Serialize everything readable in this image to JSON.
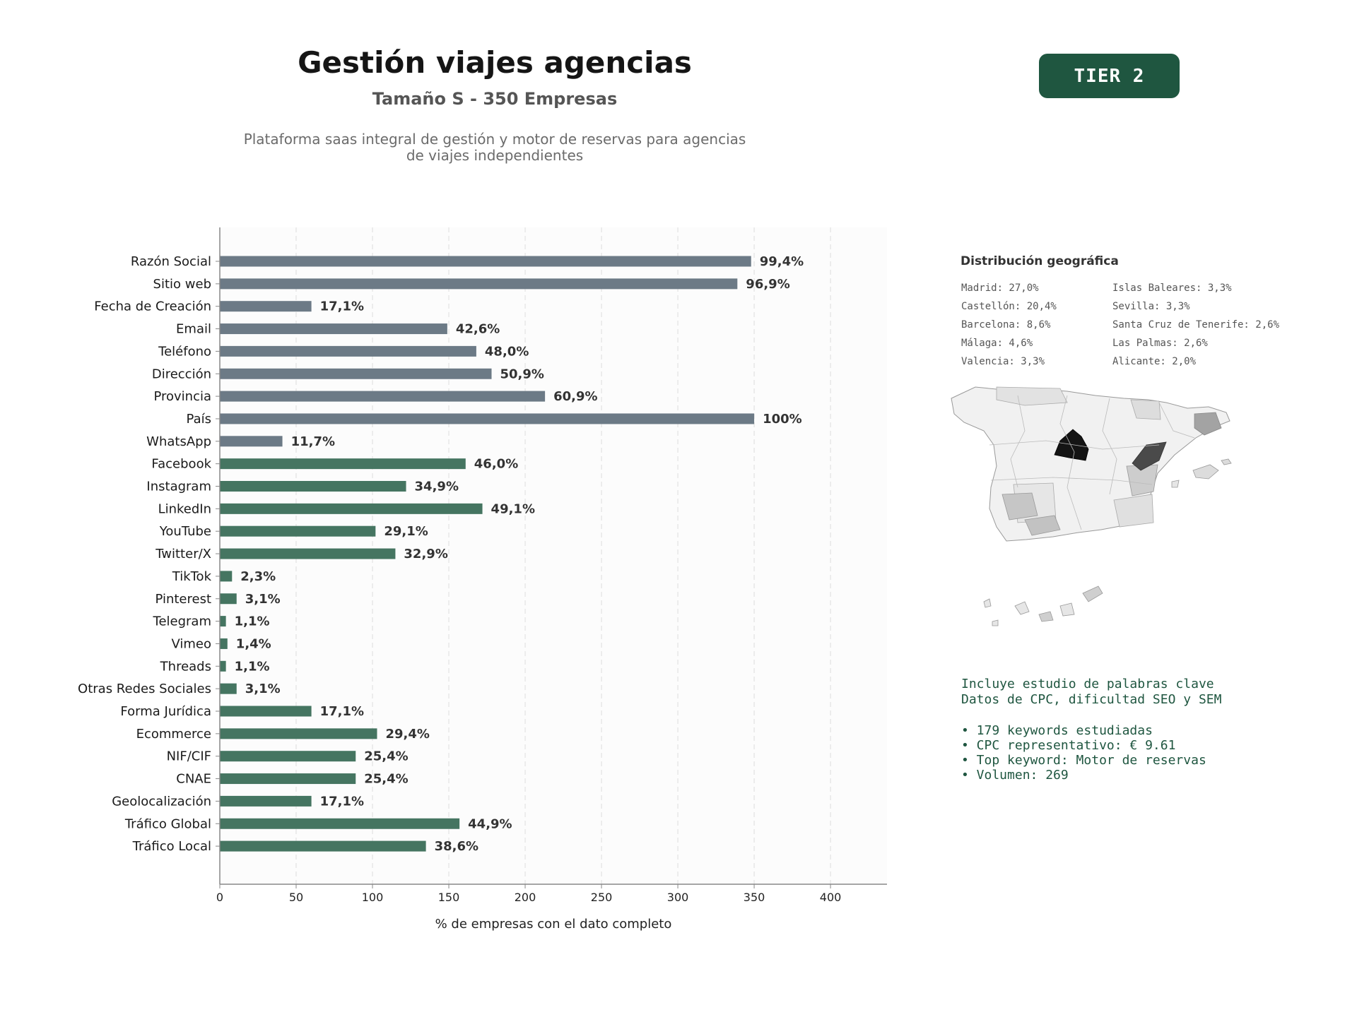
{
  "header": {
    "title": "Gestión viajes agencias",
    "subtitle": "Tamaño S - 350 Empresas",
    "description_line1": "Plataforma saas integral de gestión y motor de reservas para agencias",
    "description_line2": "de viajes independientes",
    "tier_badge": "TIER 2"
  },
  "colors": {
    "bar_gray": "#6c7a86",
    "bar_green": "#457561",
    "accent": "#1f5640"
  },
  "chart_data": {
    "type": "bar",
    "orientation": "horizontal",
    "xlabel": "% de empresas con el dato completo",
    "xlim": [
      0,
      437
    ],
    "xticks": [
      0,
      50,
      100,
      150,
      200,
      250,
      300,
      350,
      400
    ],
    "grid": "vertical dashed",
    "categories": [
      "Razón Social",
      "Sitio web",
      "Fecha de Creación",
      "Email",
      "Teléfono",
      "Dirección",
      "Provincia",
      "País",
      "WhatsApp",
      "Facebook",
      "Instagram",
      "LinkedIn",
      "YouTube",
      "Twitter/X",
      "TikTok",
      "Pinterest",
      "Telegram",
      "Vimeo",
      "Threads",
      "Otras Redes Sociales",
      "Forma Jurídica",
      "Ecommerce",
      "NIF/CIF",
      "CNAE",
      "Geolocalización",
      "Tráfico Global",
      "Tráfico Local"
    ],
    "values": [
      348,
      339,
      60,
      149,
      168,
      178,
      213,
      350,
      41,
      161,
      122,
      172,
      102,
      115,
      8,
      11,
      4,
      5,
      4,
      11,
      60,
      103,
      89,
      89,
      60,
      157,
      135
    ],
    "data_labels": [
      "99,4%",
      "96,9%",
      "17,1%",
      "42,6%",
      "48,0%",
      "50,9%",
      "60,9%",
      "100%",
      "11,7%",
      "46,0%",
      "34,9%",
      "49,1%",
      "29,1%",
      "32,9%",
      "2,3%",
      "3,1%",
      "1,1%",
      "1,4%",
      "1,1%",
      "3,1%",
      "17,1%",
      "29,4%",
      "25,4%",
      "25,4%",
      "17,1%",
      "44,9%",
      "38,6%"
    ],
    "bar_groups": [
      "gray",
      "gray",
      "gray",
      "gray",
      "gray",
      "gray",
      "gray",
      "gray",
      "gray",
      "green",
      "green",
      "green",
      "green",
      "green",
      "green",
      "green",
      "green",
      "green",
      "green",
      "green",
      "green",
      "green",
      "green",
      "green",
      "green",
      "green",
      "green"
    ]
  },
  "geo": {
    "title": "Distribución geográfica",
    "col1": [
      "Madrid: 27,0%",
      "Castellón: 20,4%",
      "Barcelona: 8,6%",
      "Málaga: 4,6%",
      "Valencia: 3,3%"
    ],
    "col2": [
      "Islas Baleares: 3,3%",
      "Sevilla: 3,3%",
      "Santa Cruz de Tenerife: 2,6%",
      "Las Palmas: 2,6%",
      "Alicante: 2,0%"
    ]
  },
  "keywords": {
    "line1": "Incluye estudio de palabras clave",
    "line2": "Datos de CPC, dificultad SEO y SEM",
    "bullet1": "• 179 keywords estudiadas",
    "bullet2": "• CPC representativo: € 9.61",
    "bullet3": "• Top keyword: Motor de reservas",
    "bullet4": "• Volumen: 269"
  }
}
